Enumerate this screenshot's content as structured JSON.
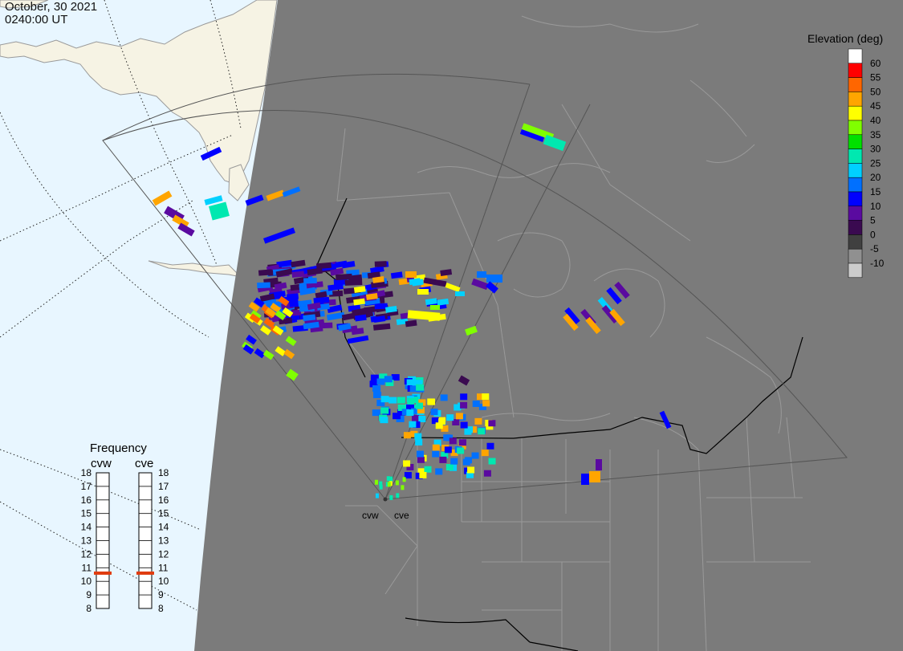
{
  "header": {
    "date": "October, 30 2021",
    "time": "0240:00 UT"
  },
  "colorbar": {
    "title": "Elevation (deg)",
    "entries": [
      {
        "label": "60",
        "color": "#ffffff"
      },
      {
        "label": "55",
        "color": "#ff0000"
      },
      {
        "label": "50",
        "color": "#ff6600"
      },
      {
        "label": "45",
        "color": "#ffa500"
      },
      {
        "label": "40",
        "color": "#ffff00"
      },
      {
        "label": "35",
        "color": "#80ff00"
      },
      {
        "label": "30",
        "color": "#00e000"
      },
      {
        "label": "25",
        "color": "#00e8b0"
      },
      {
        "label": "20",
        "color": "#00d0ff"
      },
      {
        "label": "15",
        "color": "#0070ff"
      },
      {
        "label": "10",
        "color": "#0000ff"
      },
      {
        "label": "5",
        "color": "#5a0aa0"
      },
      {
        "label": "0",
        "color": "#3a0a50"
      },
      {
        "label": "-5",
        "color": "#404040"
      },
      {
        "label": "-10",
        "color": "#909090"
      },
      {
        "label": "",
        "color": "#cccccc"
      }
    ]
  },
  "frequency": {
    "title": "Frequency",
    "scale": [
      "18",
      "17",
      "16",
      "15",
      "14",
      "13",
      "12",
      "11",
      "10",
      "9",
      "8"
    ],
    "radars": [
      {
        "name": "cvw",
        "value": 10.6
      },
      {
        "name": "cve",
        "value": 10.6
      }
    ]
  },
  "sites": [
    "cvw",
    "cve"
  ],
  "map": {
    "ocean_color": "#e8f6ff",
    "land_day_color": "#f6f3e4",
    "night_color": "#7b7b7b",
    "border_color": "#000000",
    "state_line_color": "#9a9a9a"
  }
}
